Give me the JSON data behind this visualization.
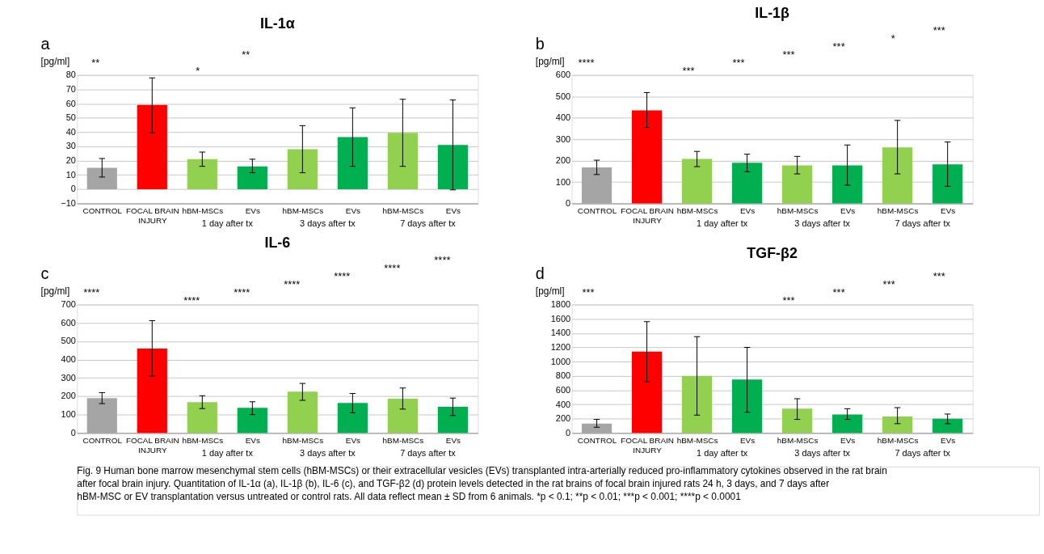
{
  "chart_data": [
    {
      "type": "bar",
      "title": "IL-1α",
      "ylabel": "[pg/ml]",
      "categories": [
        "CONTROL",
        "FOCAL BRAIN INJURY",
        "hBM-MSCs",
        "EVs",
        "hBM-MSCs",
        "EVs",
        "hBM-MSCs",
        "EVs"
      ],
      "values": [
        15,
        59,
        21,
        16,
        28,
        36.5,
        39.5,
        31
      ],
      "colors": [
        "#a5a5a5",
        "#ff0000",
        "#92d050",
        "#00b050",
        "#92d050",
        "#00b050",
        "#92d050",
        "#00b050"
      ],
      "errors": [
        [
          8.5,
          21.5
        ],
        [
          39.5,
          78
        ],
        [
          16,
          26
        ],
        [
          11.5,
          21
        ],
        [
          11.5,
          44.5
        ],
        [
          16,
          57
        ],
        [
          16,
          63
        ],
        [
          -0.5,
          62.5
        ]
      ],
      "ylim": [
        -10,
        80
      ],
      "yticks": [
        -10,
        0,
        10,
        20,
        30,
        40,
        50,
        60,
        70,
        80
      ],
      "grid": "y",
      "annotations": [
        "a",
        "1 day after tx",
        "3 days after tx",
        "7 days after tx",
        "**",
        "*",
        "**"
      ]
    },
    {
      "type": "bar",
      "title": "IL-1β",
      "ylabel": "[pg/ml]",
      "categories": [
        "CONTROL",
        "FOCAL BRAIN INJURY",
        "hBM-MSCs",
        "EVs",
        "hBM-MSCs",
        "EVs",
        "hBM-MSCs",
        "EVs"
      ],
      "values": [
        168,
        435,
        208,
        190,
        178,
        178,
        262,
        182
      ],
      "colors": [
        "#a5a5a5",
        "#ff0000",
        "#92d050",
        "#00b050",
        "#92d050",
        "#00b050",
        "#92d050",
        "#00b050"
      ],
      "errors": [
        [
          135,
          202
        ],
        [
          355,
          518
        ],
        [
          172,
          243
        ],
        [
          148,
          230
        ],
        [
          138,
          220
        ],
        [
          85,
          273
        ],
        [
          138,
          388
        ],
        [
          80,
          287
        ]
      ],
      "ylim": [
        0,
        600
      ],
      "yticks": [
        0,
        100,
        200,
        300,
        400,
        500,
        600
      ],
      "grid": "y",
      "annotations": [
        "b",
        "1 day after tx",
        "3 days after tx",
        "7 days after tx",
        "****",
        "***",
        "***",
        "***",
        "***",
        "*",
        "***"
      ]
    },
    {
      "type": "bar",
      "title": "IL-6",
      "ylabel": "[pg/ml]",
      "categories": [
        "CONTROL",
        "FOCAL BRAIN INJURY",
        "hBM-MSCs",
        "EVs",
        "hBM-MSCs",
        "EVs",
        "hBM-MSCs",
        "EVs"
      ],
      "values": [
        190,
        460,
        168,
        137,
        225,
        163,
        187,
        143
      ],
      "colors": [
        "#a5a5a5",
        "#ff0000",
        "#92d050",
        "#00b050",
        "#92d050",
        "#00b050",
        "#92d050",
        "#00b050"
      ],
      "errors": [
        [
          160,
          220
        ],
        [
          310,
          612
        ],
        [
          133,
          203
        ],
        [
          100,
          170
        ],
        [
          178,
          270
        ],
        [
          110,
          215
        ],
        [
          130,
          245
        ],
        [
          95,
          190
        ]
      ],
      "ylim": [
        0,
        700
      ],
      "yticks": [
        0,
        100,
        200,
        300,
        400,
        500,
        600,
        700
      ],
      "grid": "y",
      "annotations": [
        "c",
        "1 day after tx",
        "3 days after tx",
        "7 days after tx",
        "****",
        "****",
        "****",
        "****",
        "****",
        "****",
        "****"
      ]
    },
    {
      "type": "bar",
      "title": "TGF-β2",
      "ylabel": "[pg/ml]",
      "categories": [
        "CONTROL",
        "FOCAL BRAIN INJURY",
        "hBM-MSCs",
        "EVs",
        "hBM-MSCs",
        "EVs",
        "hBM-MSCs",
        "EVs"
      ],
      "values": [
        130,
        1140,
        800,
        750,
        340,
        260,
        230,
        200
      ],
      "colors": [
        "#a5a5a5",
        "#ff0000",
        "#92d050",
        "#00b050",
        "#92d050",
        "#00b050",
        "#92d050",
        "#00b050"
      ],
      "errors": [
        [
          80,
          190
        ],
        [
          720,
          1560
        ],
        [
          250,
          1350
        ],
        [
          290,
          1200
        ],
        [
          190,
          480
        ],
        [
          190,
          340
        ],
        [
          130,
          355
        ],
        [
          130,
          265
        ]
      ],
      "ylim": [
        0,
        1800
      ],
      "yticks": [
        0,
        200,
        400,
        600,
        800,
        1000,
        1200,
        1400,
        1600,
        1800
      ],
      "grid": "y",
      "annotations": [
        "d",
        "1 day after tx",
        "3 days after tx",
        "7 days after tx",
        "***",
        "***",
        "***",
        "***",
        "***",
        "Fig. 9 Human bone marrow mesenchymal stem cells (hBM-MSCs) or their extracellular vesicles (EVs) transplanted intra-arterially reduced pro-inflammatory cytokines observed in the rat brain after focal brain injury. Quantitation of IL-1α (a), IL-1β (b), IL-6 (c), and TGF-β2 (d) protein levels detected in the rat brains of focal brain injured rats 24 h, 3 days, and 7 days after hBM-MSC or EV transplantation versus untreated or control rats. All data reflect mean ± SD from 6 animals. *p < 0.1; **p < 0.01; ***p < 0.001; ****p < 0.0001"
      ]
    }
  ]
}
